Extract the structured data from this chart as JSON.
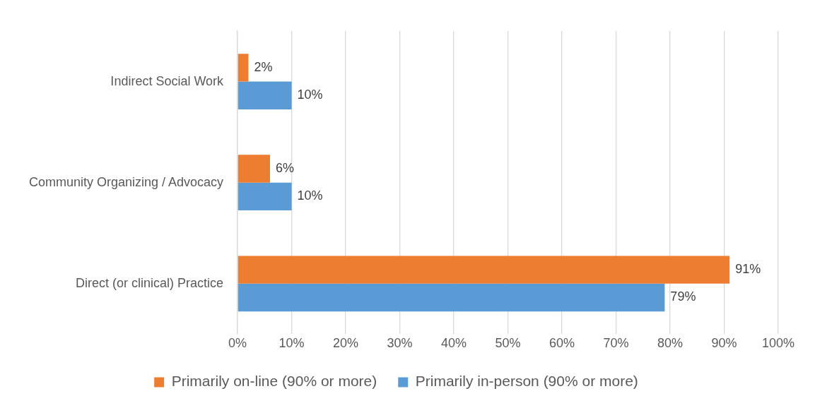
{
  "chart_data": {
    "type": "bar",
    "orientation": "horizontal",
    "categories": [
      "Indirect Social Work",
      "Community Organizing / Advocacy",
      "Direct (or clinical) Practice"
    ],
    "series": [
      {
        "name": "Primarily on-line (90% or more)",
        "color": "#ed7d31",
        "values": [
          2,
          6,
          91
        ],
        "value_labels": [
          "2%",
          "6%",
          "91%"
        ]
      },
      {
        "name": "Primarily in-person (90% or more)",
        "color": "#5b9bd5",
        "values": [
          10,
          10,
          79
        ],
        "value_labels": [
          "10%",
          "10%",
          "79%"
        ]
      }
    ],
    "xlim": [
      0,
      100
    ],
    "xticks": [
      {
        "value": 0,
        "label": "0%"
      },
      {
        "value": 10,
        "label": "10%"
      },
      {
        "value": 20,
        "label": "20%"
      },
      {
        "value": 30,
        "label": "30%"
      },
      {
        "value": 40,
        "label": "40%"
      },
      {
        "value": 50,
        "label": "50%"
      },
      {
        "value": 60,
        "label": "60%"
      },
      {
        "value": 70,
        "label": "70%"
      },
      {
        "value": 80,
        "label": "80%"
      },
      {
        "value": 90,
        "label": "90%"
      },
      {
        "value": 100,
        "label": "100%"
      }
    ],
    "grid": "x",
    "legend": "bottom"
  }
}
